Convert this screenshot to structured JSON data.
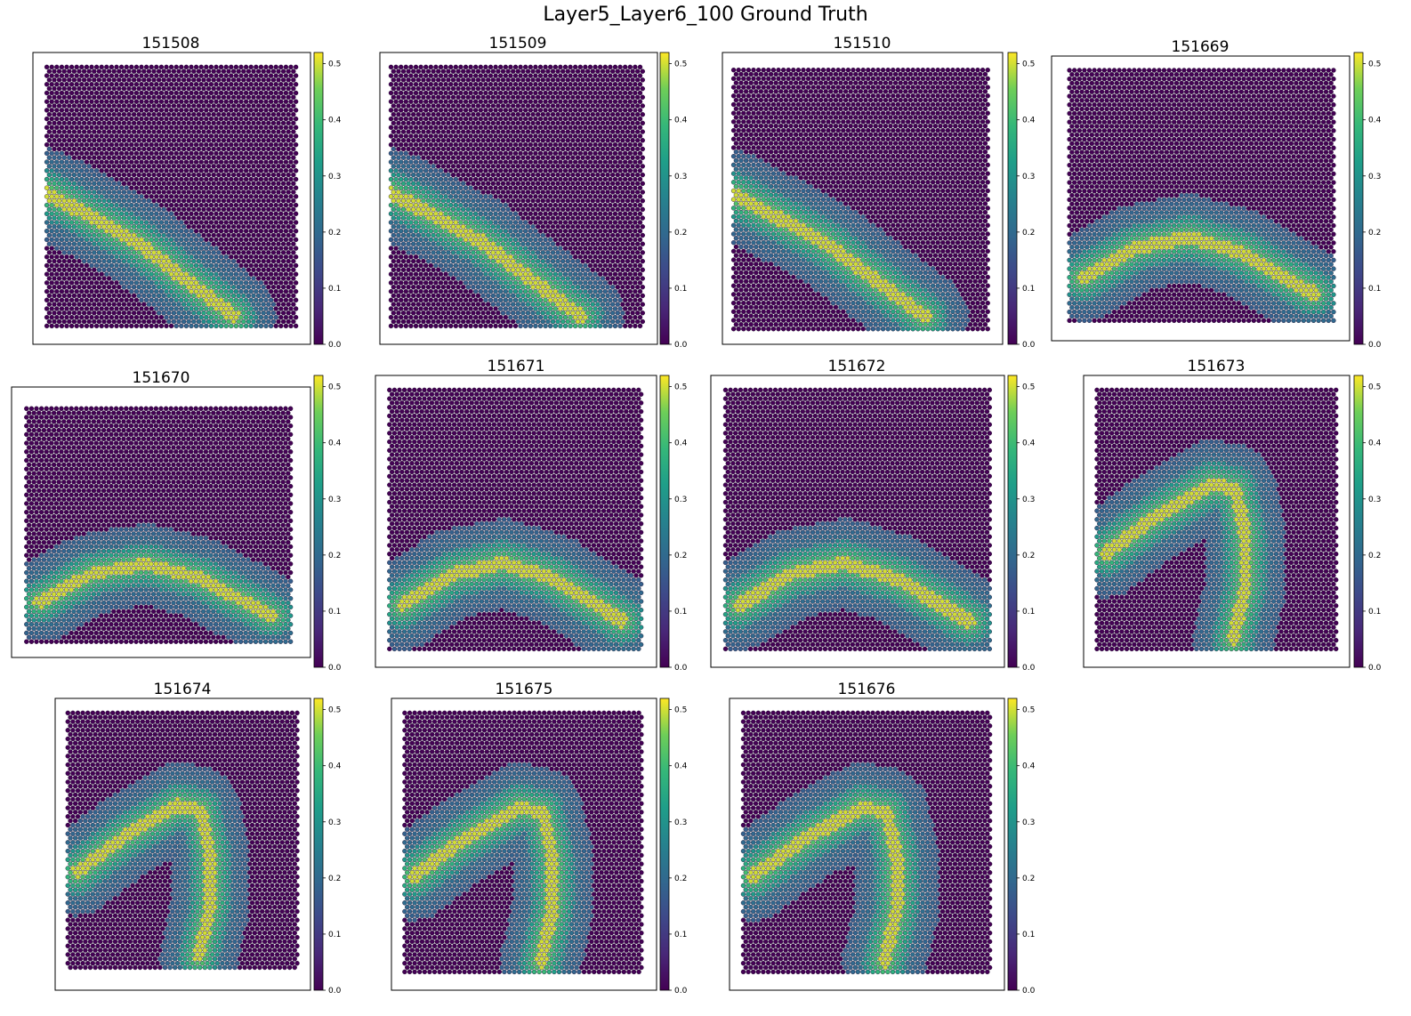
{
  "figure": {
    "title": "Layer5_Layer6_100 Ground Truth"
  },
  "chart_data": [
    {
      "type": "heatmap",
      "title": "151508",
      "colormap": "viridis",
      "colorbar_range": [
        0.0,
        0.52
      ],
      "colorbar_ticks": [
        "0.0",
        "0.1",
        "0.2",
        "0.3",
        "0.4",
        "0.5"
      ],
      "band_shape": "diagonal",
      "band_peak_value": 0.5
    },
    {
      "type": "heatmap",
      "title": "151509",
      "colormap": "viridis",
      "colorbar_range": [
        0.0,
        0.52
      ],
      "colorbar_ticks": [
        "0.0",
        "0.1",
        "0.2",
        "0.3",
        "0.4",
        "0.5"
      ],
      "band_shape": "diagonal",
      "band_peak_value": 0.5
    },
    {
      "type": "heatmap",
      "title": "151510",
      "colormap": "viridis",
      "colorbar_range": [
        0.0,
        0.52
      ],
      "colorbar_ticks": [
        "0.0",
        "0.1",
        "0.2",
        "0.3",
        "0.4",
        "0.5"
      ],
      "band_shape": "diagonal",
      "band_peak_value": 0.5
    },
    {
      "type": "heatmap",
      "title": "151669",
      "colormap": "viridis",
      "colorbar_range": [
        0.0,
        0.52
      ],
      "colorbar_ticks": [
        "0.0",
        "0.1",
        "0.2",
        "0.3",
        "0.4",
        "0.5"
      ],
      "band_shape": "arch",
      "band_peak_value": 0.5
    },
    {
      "type": "heatmap",
      "title": "151670",
      "colormap": "viridis",
      "colorbar_range": [
        0.0,
        0.52
      ],
      "colorbar_ticks": [
        "0.0",
        "0.1",
        "0.2",
        "0.3",
        "0.4",
        "0.5"
      ],
      "band_shape": "arch",
      "band_peak_value": 0.5
    },
    {
      "type": "heatmap",
      "title": "151671",
      "colormap": "viridis",
      "colorbar_range": [
        0.0,
        0.52
      ],
      "colorbar_ticks": [
        "0.0",
        "0.1",
        "0.2",
        "0.3",
        "0.4",
        "0.5"
      ],
      "band_shape": "arch",
      "band_peak_value": 0.5
    },
    {
      "type": "heatmap",
      "title": "151672",
      "colormap": "viridis",
      "colorbar_range": [
        0.0,
        0.52
      ],
      "colorbar_ticks": [
        "0.0",
        "0.1",
        "0.2",
        "0.3",
        "0.4",
        "0.5"
      ],
      "band_shape": "arch",
      "band_peak_value": 0.5
    },
    {
      "type": "heatmap",
      "title": "151673",
      "colormap": "viridis",
      "colorbar_range": [
        0.0,
        0.52
      ],
      "colorbar_ticks": [
        "0.0",
        "0.1",
        "0.2",
        "0.3",
        "0.4",
        "0.5"
      ],
      "band_shape": "hook",
      "band_peak_value": 0.5
    },
    {
      "type": "heatmap",
      "title": "151674",
      "colormap": "viridis",
      "colorbar_range": [
        0.0,
        0.52
      ],
      "colorbar_ticks": [
        "0.0",
        "0.1",
        "0.2",
        "0.3",
        "0.4",
        "0.5"
      ],
      "band_shape": "hook",
      "band_peak_value": 0.5
    },
    {
      "type": "heatmap",
      "title": "151675",
      "colormap": "viridis",
      "colorbar_range": [
        0.0,
        0.52
      ],
      "colorbar_ticks": [
        "0.0",
        "0.1",
        "0.2",
        "0.3",
        "0.4",
        "0.5"
      ],
      "band_shape": "hook",
      "band_peak_value": 0.5
    },
    {
      "type": "heatmap",
      "title": "151676",
      "colormap": "viridis",
      "colorbar_range": [
        0.0,
        0.52
      ],
      "colorbar_ticks": [
        "0.0",
        "0.1",
        "0.2",
        "0.3",
        "0.4",
        "0.5"
      ],
      "band_shape": "hook",
      "band_peak_value": 0.5
    }
  ]
}
